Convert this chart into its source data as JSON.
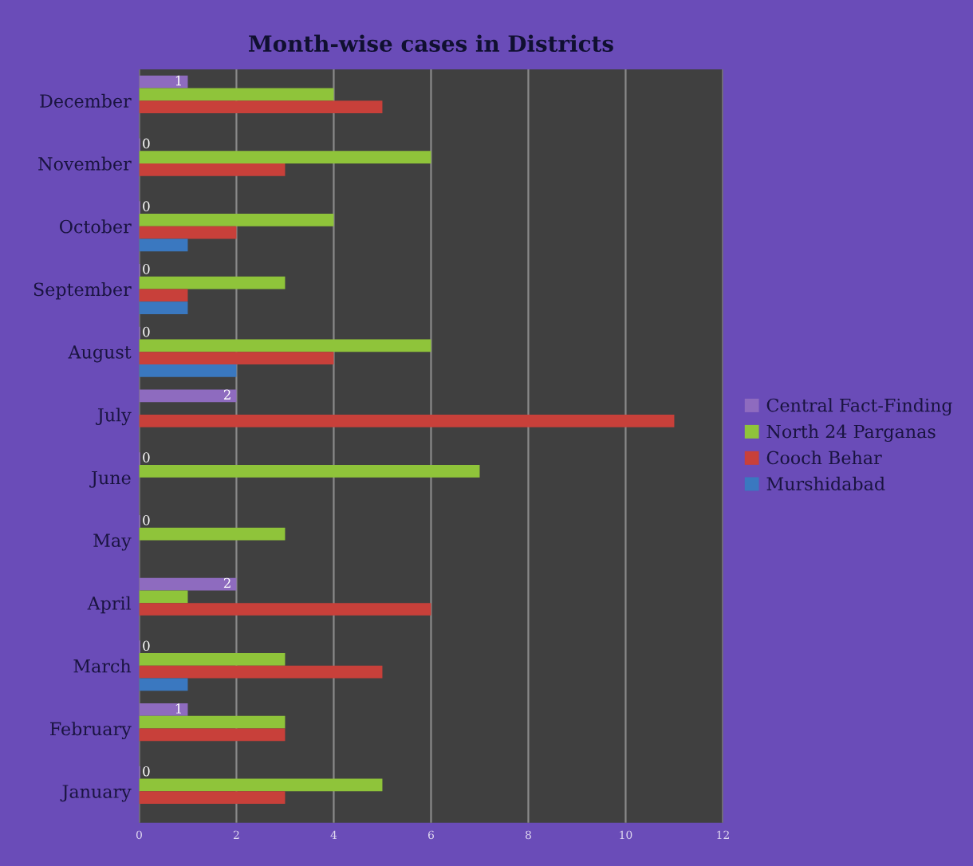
{
  "chart_data": {
    "type": "bar",
    "orientation": "horizontal",
    "title": "Month-wise cases in Districts",
    "categories": [
      "December",
      "November",
      "October",
      "September",
      "August",
      "July",
      "June",
      "May",
      "April",
      "March",
      "February",
      "January"
    ],
    "series": [
      {
        "name": "Central Fact-Finding",
        "color": "#8e6bbf",
        "values": [
          1,
          0,
          0,
          0,
          0,
          2,
          0,
          0,
          2,
          0,
          1,
          0
        ],
        "value_labels": [
          "1",
          "0",
          "0",
          "0",
          "0",
          "2",
          "0",
          "0",
          "2",
          "0",
          "1",
          "0"
        ]
      },
      {
        "name": "North 24 Parganas",
        "color": "#8fc43a",
        "values": [
          4,
          6,
          4,
          3,
          6,
          0,
          7,
          3,
          1,
          3,
          3,
          5
        ]
      },
      {
        "name": "Cooch Behar",
        "color": "#c8403a",
        "values": [
          5,
          3,
          2,
          1,
          4,
          11,
          0,
          0,
          6,
          5,
          3,
          3
        ]
      },
      {
        "name": "Murshidabad",
        "color": "#3a78c0",
        "values": [
          0,
          0,
          1,
          1,
          2,
          0,
          0,
          0,
          0,
          1,
          0,
          0
        ]
      }
    ],
    "xlim": [
      0,
      12
    ],
    "xticks": [
      0,
      2,
      4,
      6,
      8,
      10,
      12
    ],
    "grid": "x",
    "legend": "right"
  }
}
